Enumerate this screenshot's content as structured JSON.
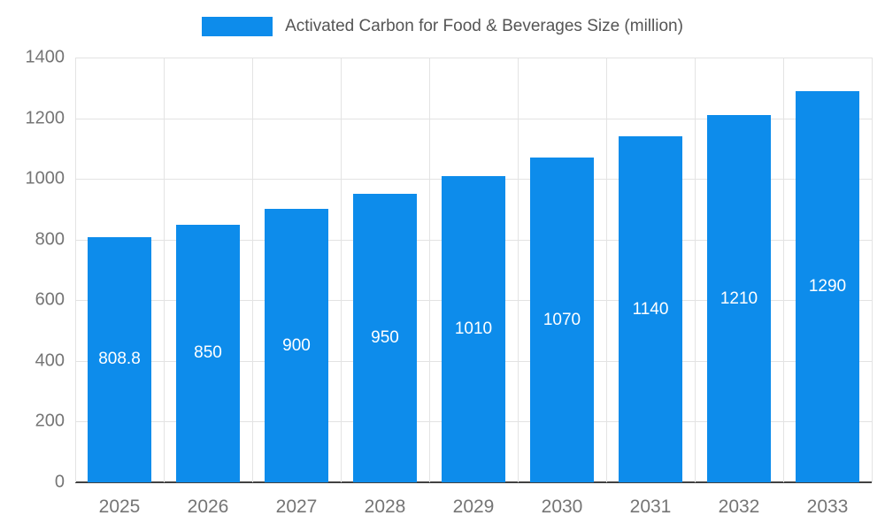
{
  "chart_data": {
    "type": "bar",
    "title": "Activated Carbon for Food & Beverages Size (million)",
    "categories": [
      "2025",
      "2026",
      "2027",
      "2028",
      "2029",
      "2030",
      "2031",
      "2032",
      "2033"
    ],
    "values": [
      808.8,
      850,
      900,
      950,
      1010,
      1070,
      1140,
      1210,
      1290
    ],
    "value_labels": [
      "808.8",
      "850",
      "900",
      "950",
      "1010",
      "1070",
      "1140",
      "1210",
      "1290"
    ],
    "xlabel": "",
    "ylabel": "",
    "ylim": [
      0,
      1400
    ],
    "ytick_step": 200,
    "ytick_labels": [
      "0",
      "200",
      "400",
      "600",
      "800",
      "1000",
      "1200",
      "1400"
    ],
    "grid": true,
    "legend_position": "top",
    "colors": {
      "bar": "#0d8ceb",
      "bar_value_label": "#ffffff",
      "axis_text": "#757575",
      "legend_text": "#555555",
      "gridline": "#e3e3e3",
      "axis_line": "#424242",
      "background": "#ffffff"
    }
  }
}
